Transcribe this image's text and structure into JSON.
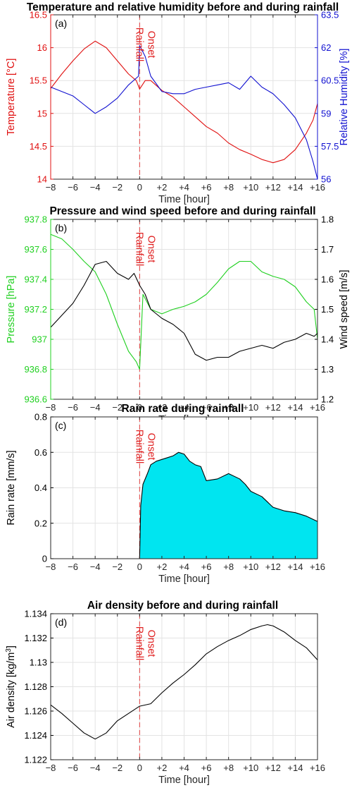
{
  "chart_data": [
    {
      "type": "line",
      "panel_label": "(a)",
      "title": "Temperature and relative humidity before and during rainfall",
      "xlabel": "Time [hour]",
      "xlim": [
        -8,
        16
      ],
      "xticks": [
        "−8",
        "−6",
        "−4",
        "−2",
        "0",
        "+2",
        "+4",
        "+6",
        "+8",
        "+10",
        "+12",
        "+14",
        "+16"
      ],
      "onset_lines": [
        "Rainfall",
        "Onset"
      ],
      "y_left": {
        "label": "Temperature [°C]",
        "lim": [
          14,
          16.5
        ],
        "ticks": [
          "14",
          "14.5",
          "15",
          "15.5",
          "16",
          "16.5"
        ],
        "color": "#e01010"
      },
      "y_right": {
        "label": "Relative Humidity [%]",
        "lim": [
          56,
          63.5
        ],
        "ticks": [
          "56",
          "57.5",
          "59",
          "60.5",
          "62",
          "63.5"
        ],
        "color": "#1010d0"
      },
      "series": [
        {
          "axis": "left",
          "color": "#e01010",
          "x": [
            -8,
            -7,
            -6,
            -5,
            -4,
            -3,
            -2,
            -1,
            -0.3,
            0,
            0.5,
            1,
            2,
            3,
            4,
            5,
            6,
            7,
            8,
            9,
            10,
            11,
            12,
            13,
            14,
            15,
            15.6,
            16
          ],
          "y": [
            15.38,
            15.6,
            15.8,
            15.98,
            16.1,
            16.0,
            15.8,
            15.6,
            15.5,
            15.37,
            15.5,
            15.5,
            15.35,
            15.25,
            15.1,
            14.95,
            14.8,
            14.7,
            14.55,
            14.45,
            14.38,
            14.3,
            14.25,
            14.3,
            14.45,
            14.7,
            14.9,
            15.15
          ]
        },
        {
          "axis": "right",
          "color": "#1010d0",
          "x": [
            -8,
            -7,
            -6,
            -5,
            -4,
            -3,
            -2,
            -1,
            -0.1,
            0,
            0.5,
            1,
            2,
            3,
            4,
            5,
            6,
            7,
            8,
            9,
            10,
            11,
            12,
            13,
            14,
            15,
            15.6,
            16
          ],
          "y": [
            60.2,
            60.0,
            59.8,
            59.4,
            59.0,
            59.3,
            59.7,
            60.3,
            60.7,
            62.1,
            61.6,
            60.7,
            60.0,
            59.9,
            59.9,
            60.1,
            60.2,
            60.3,
            60.4,
            60.1,
            60.7,
            60.2,
            59.9,
            59.4,
            58.8,
            57.8,
            56.8,
            56.0
          ]
        }
      ]
    },
    {
      "type": "line",
      "panel_label": "(b)",
      "title": "Pressure and wind speed before and during rainfall",
      "xlabel": "Time [hour]",
      "xlim": [
        -8,
        16
      ],
      "xticks": [
        "−8",
        "−6",
        "−4",
        "−2",
        "0",
        "+2",
        "+4",
        "+6",
        "+8",
        "+10",
        "+12",
        "+14",
        "+16"
      ],
      "onset_lines": [
        "Rainfall",
        "Onset"
      ],
      "y_left": {
        "label": "Pressure [hPa]",
        "lim": [
          936.6,
          937.8
        ],
        "ticks": [
          "936.6",
          "936.8",
          "937",
          "937.2",
          "937.4",
          "937.6",
          "937.8"
        ],
        "color": "#20d020"
      },
      "y_right": {
        "label": "Wind speed [m/s]",
        "lim": [
          1.2,
          1.8
        ],
        "ticks": [
          "1.2",
          "1.3",
          "1.4",
          "1.5",
          "1.6",
          "1.7",
          "1.8"
        ],
        "color": "#000000"
      },
      "series": [
        {
          "axis": "left",
          "color": "#20d020",
          "x": [
            -8,
            -7,
            -6,
            -5,
            -4,
            -3,
            -2,
            -1,
            -0.3,
            0,
            0.3,
            1,
            2,
            3,
            4,
            5,
            6,
            7,
            8,
            9,
            10,
            11,
            12,
            13,
            14,
            15,
            15.7,
            16
          ],
          "y": [
            937.7,
            937.67,
            937.6,
            937.52,
            937.45,
            937.3,
            937.1,
            936.92,
            936.85,
            936.8,
            937.3,
            937.2,
            937.17,
            937.2,
            937.22,
            937.25,
            937.3,
            937.38,
            937.47,
            937.52,
            937.52,
            937.45,
            937.42,
            937.4,
            937.35,
            937.25,
            937.2,
            937.0
          ]
        },
        {
          "axis": "right",
          "color": "#000000",
          "x": [
            -8,
            -7,
            -6,
            -5,
            -4,
            -3,
            -2,
            -1,
            -0.5,
            0,
            0.5,
            1,
            2,
            3,
            4,
            5,
            6,
            7,
            8,
            9,
            10,
            11,
            12,
            13,
            14,
            15,
            15.7,
            16
          ],
          "y": [
            1.44,
            1.48,
            1.52,
            1.58,
            1.65,
            1.66,
            1.62,
            1.6,
            1.62,
            1.58,
            1.55,
            1.5,
            1.47,
            1.45,
            1.42,
            1.35,
            1.33,
            1.34,
            1.34,
            1.36,
            1.37,
            1.38,
            1.37,
            1.39,
            1.4,
            1.42,
            1.41,
            1.42
          ]
        }
      ]
    },
    {
      "type": "area",
      "panel_label": "(c)",
      "title": "Rain rate during rainfall",
      "xlabel": "Time [hour]",
      "xlim": [
        -8,
        16
      ],
      "xticks": [
        "−8",
        "−6",
        "−4",
        "−2",
        "0",
        "+2",
        "+4",
        "+6",
        "+8",
        "+10",
        "+12",
        "+14",
        "+16"
      ],
      "onset_lines": [
        "Rainfall",
        "Onset"
      ],
      "y_left": {
        "label": "Rain rate [mm/s]",
        "lim": [
          0,
          0.8
        ],
        "ticks": [
          "0",
          "0.2",
          "0.4",
          "0.6",
          "0.8"
        ],
        "color": "#000000"
      },
      "series": [
        {
          "axis": "left",
          "color": "#000000",
          "fill": "#00e5f0",
          "x": [
            0,
            0.1,
            0.3,
            0.7,
            1,
            1.5,
            2,
            2.5,
            3,
            3.5,
            4,
            4.5,
            5,
            5.5,
            6,
            7,
            8,
            9,
            9.5,
            10,
            11,
            12,
            13,
            14,
            15,
            16
          ],
          "y": [
            0,
            0.3,
            0.42,
            0.48,
            0.53,
            0.55,
            0.56,
            0.57,
            0.58,
            0.6,
            0.59,
            0.55,
            0.53,
            0.52,
            0.44,
            0.45,
            0.48,
            0.45,
            0.42,
            0.38,
            0.35,
            0.29,
            0.27,
            0.26,
            0.24,
            0.21
          ]
        }
      ]
    },
    {
      "type": "line",
      "panel_label": "(d)",
      "title": "Air density before and during rainfall",
      "xlabel": "Time [hour]",
      "xlim": [
        -8,
        16
      ],
      "xticks": [
        "−8",
        "−6",
        "−4",
        "−2",
        "0",
        "+2",
        "+4",
        "+6",
        "+8",
        "+10",
        "+12",
        "+14",
        "+16"
      ],
      "onset_lines": [
        "Rainfall",
        "Onset"
      ],
      "y_left": {
        "label": "Air density [kg/m",
        "label_sup": "3",
        "label_end": "]",
        "lim": [
          1.122,
          1.134
        ],
        "ticks": [
          "1.122",
          "1.124",
          "1.126",
          "1.128",
          "1.13",
          "1.132",
          "1.134"
        ],
        "color": "#000000"
      },
      "series": [
        {
          "axis": "left",
          "color": "#000000",
          "x": [
            -8,
            -7,
            -6,
            -5,
            -4,
            -3,
            -2,
            -1,
            0,
            1,
            2,
            3,
            4,
            5,
            6,
            7,
            8,
            9,
            10,
            11,
            11.5,
            12,
            13,
            14,
            15,
            16
          ],
          "y": [
            1.1265,
            1.1258,
            1.125,
            1.1242,
            1.1237,
            1.1242,
            1.1252,
            1.1258,
            1.1264,
            1.1266,
            1.1275,
            1.1283,
            1.129,
            1.1298,
            1.1307,
            1.1313,
            1.1318,
            1.1322,
            1.1327,
            1.133,
            1.1331,
            1.133,
            1.1325,
            1.1318,
            1.1312,
            1.1302
          ]
        }
      ]
    }
  ]
}
